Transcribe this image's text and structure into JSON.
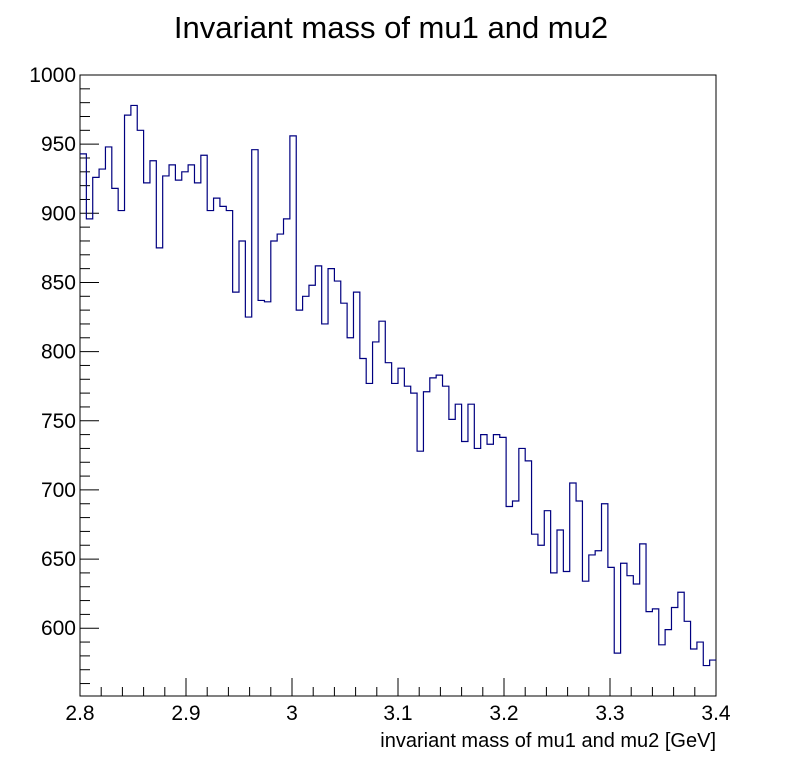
{
  "chart_data": {
    "type": "line",
    "subtype": "step-histogram",
    "title": "Invariant mass of mu1 and mu2",
    "xlabel": "invariant mass of mu1 and mu2 [GeV]",
    "ylabel": "",
    "xlim": [
      2.8,
      3.4
    ],
    "ylim": [
      551,
      1000
    ],
    "x_ticks": [
      "2.8",
      "2.9",
      "3",
      "3.1",
      "3.2",
      "3.3",
      "3.4"
    ],
    "y_ticks": [
      "600",
      "650",
      "700",
      "750",
      "800",
      "850",
      "900",
      "950",
      "1000"
    ],
    "grid": false,
    "line_color": "#000080",
    "bin_width": 0.006,
    "x": [
      2.803,
      2.809,
      2.815,
      2.821,
      2.827,
      2.833,
      2.839,
      2.845,
      2.851,
      2.857,
      2.863,
      2.869,
      2.875,
      2.881,
      2.887,
      2.893,
      2.899,
      2.905,
      2.911,
      2.917,
      2.923,
      2.929,
      2.935,
      2.941,
      2.947,
      2.953,
      2.959,
      2.965,
      2.971,
      2.977,
      2.983,
      2.989,
      2.995,
      3.001,
      3.007,
      3.013,
      3.019,
      3.025,
      3.031,
      3.037,
      3.043,
      3.049,
      3.055,
      3.061,
      3.067,
      3.073,
      3.079,
      3.085,
      3.091,
      3.097,
      3.103,
      3.109,
      3.115,
      3.121,
      3.127,
      3.133,
      3.139,
      3.145,
      3.151,
      3.157,
      3.163,
      3.169,
      3.175,
      3.181,
      3.187,
      3.193,
      3.199,
      3.205,
      3.211,
      3.217,
      3.223,
      3.229,
      3.235,
      3.241,
      3.247,
      3.253,
      3.259,
      3.265,
      3.271,
      3.277,
      3.283,
      3.289,
      3.295,
      3.301,
      3.307,
      3.313,
      3.319,
      3.325,
      3.331,
      3.337,
      3.343,
      3.349,
      3.355,
      3.361,
      3.367,
      3.373,
      3.379,
      3.385,
      3.391,
      3.397
    ],
    "values": [
      943,
      896,
      926,
      932,
      948,
      918,
      902,
      971,
      978,
      960,
      922,
      938,
      875,
      927,
      935,
      924,
      930,
      935,
      922,
      942,
      902,
      911,
      905,
      902,
      843,
      880,
      825,
      946,
      837,
      836,
      880,
      885,
      896,
      956,
      830,
      840,
      848,
      862,
      820,
      860,
      851,
      835,
      810,
      843,
      795,
      777,
      807,
      822,
      792,
      777,
      788,
      775,
      770,
      728,
      771,
      781,
      783,
      775,
      751,
      762,
      735,
      762,
      730,
      740,
      733,
      740,
      738,
      688,
      692,
      730,
      721,
      668,
      660,
      685,
      640,
      671,
      641,
      705,
      692,
      634,
      653,
      656,
      690,
      644,
      582,
      647,
      638,
      632,
      661,
      612,
      614,
      588,
      599,
      615,
      626,
      605,
      585,
      590,
      573,
      577
    ]
  }
}
